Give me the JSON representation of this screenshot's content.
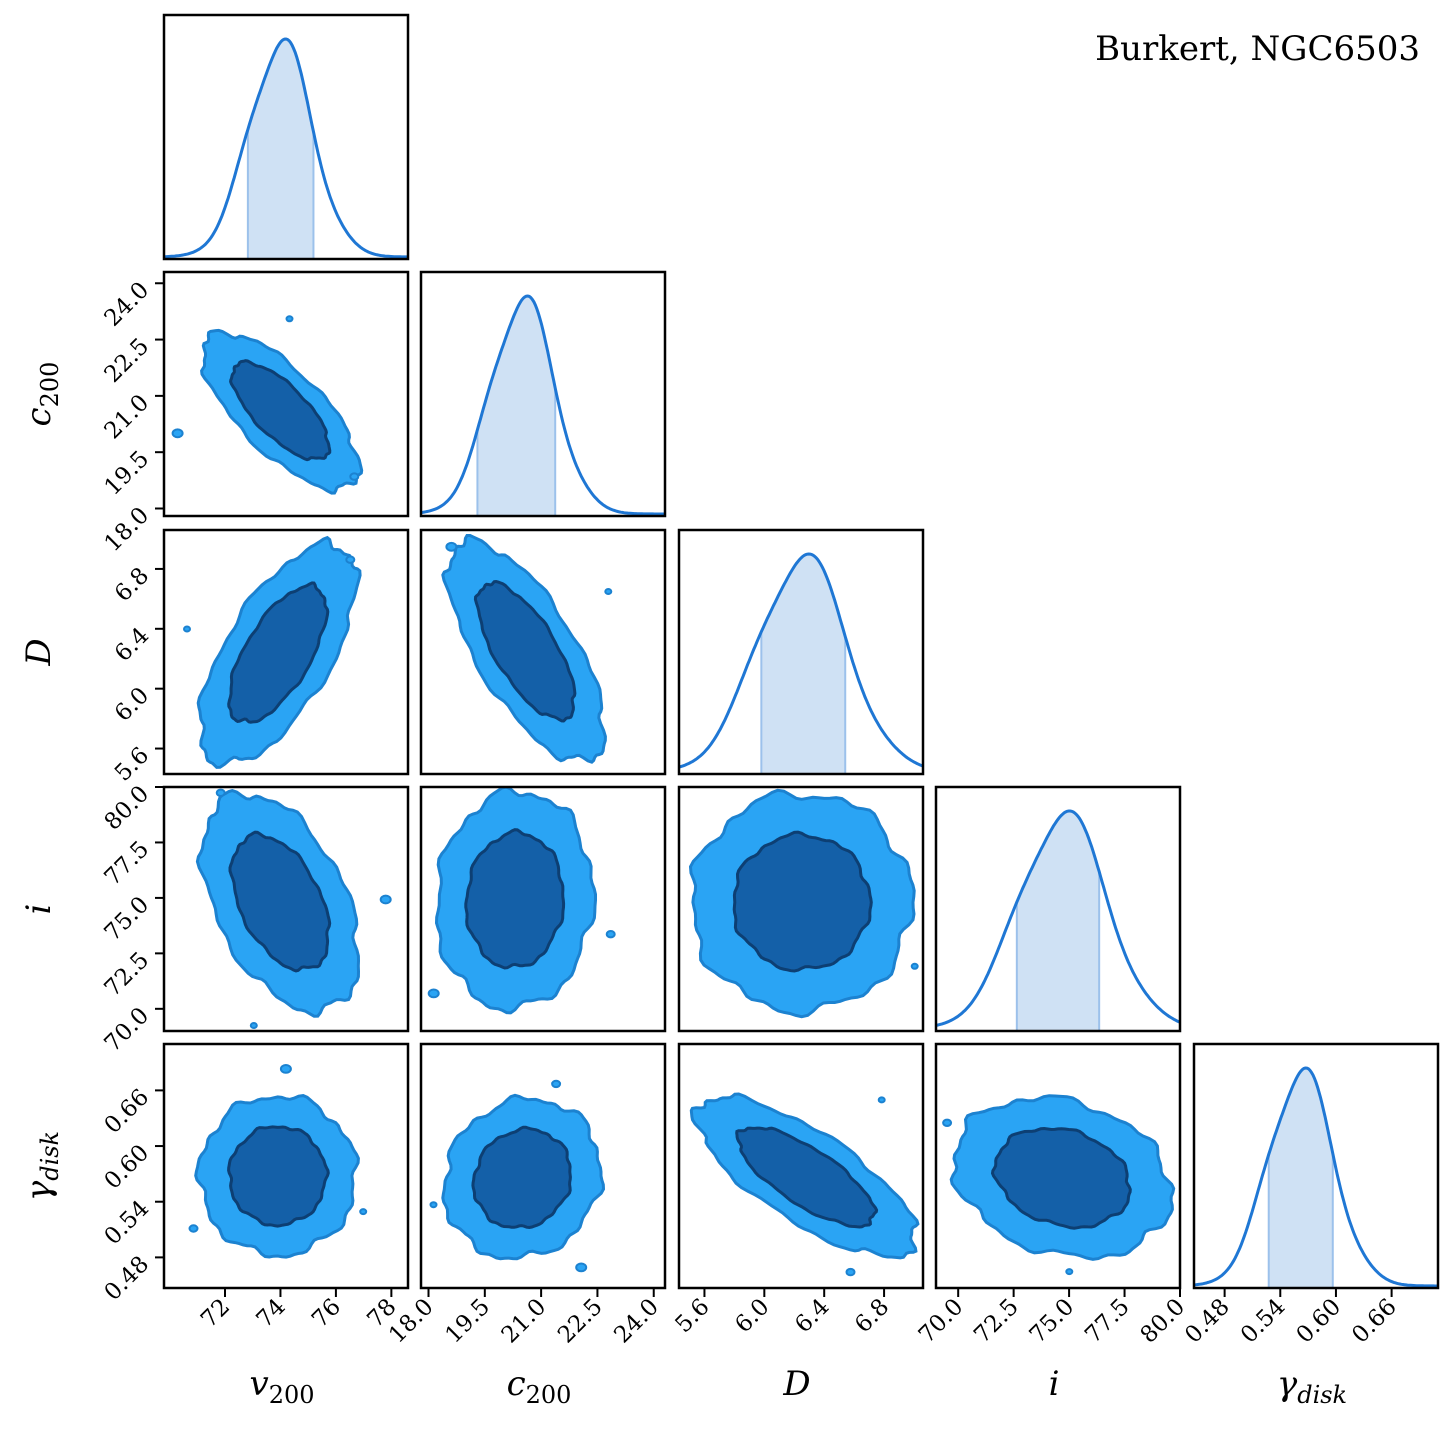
{
  "title": "Burkert, NGC6503",
  "colors": {
    "line": "#1f77d4",
    "band": "#cfe1f4",
    "band_edge": "#9cc1eb",
    "contour_outer": "#2aa4f4",
    "contour_outer_edge": "#1c82d0",
    "contour_inner": "#1460a8",
    "contour_inner_edge": "#0d3f73",
    "frame": "#000000"
  },
  "chart_data": {
    "type": "corner",
    "parameters": [
      {
        "id": "v200",
        "label": "v200",
        "label_base": "v",
        "label_sub": "200",
        "range": [
          69.8,
          78.6
        ],
        "ticks": [
          72,
          74,
          76,
          78
        ],
        "tick_labels": [
          "72",
          "74",
          "76",
          "78"
        ]
      },
      {
        "id": "c200",
        "label": "c200",
        "label_base": "c",
        "label_sub": "200",
        "range": [
          17.8,
          24.3
        ],
        "ticks": [
          18.0,
          19.5,
          21.0,
          22.5,
          24.0
        ],
        "tick_labels": [
          "18.0",
          "19.5",
          "21.0",
          "22.5",
          "24.0"
        ]
      },
      {
        "id": "D",
        "label": "D",
        "label_base": "D",
        "label_sub": "",
        "range": [
          5.43,
          7.06
        ],
        "ticks": [
          5.6,
          6.0,
          6.4,
          6.8
        ],
        "tick_labels": [
          "5.6",
          "6.0",
          "6.4",
          "6.8"
        ]
      },
      {
        "id": "i",
        "label": "i",
        "label_base": "i",
        "label_sub": "",
        "range": [
          69.0,
          80.0
        ],
        "ticks": [
          70.0,
          72.5,
          75.0,
          77.5,
          80.0
        ],
        "tick_labels": [
          "70.0",
          "72.5",
          "75.0",
          "77.5",
          "80.0"
        ]
      },
      {
        "id": "gamma_disk",
        "label": "γdisk",
        "label_base": "γ",
        "label_sub": "disk",
        "range": [
          0.447,
          0.71
        ],
        "ticks": [
          0.48,
          0.54,
          0.6,
          0.66
        ],
        "tick_labels": [
          "0.48",
          "0.54",
          "0.60",
          "0.66"
        ]
      }
    ],
    "marginals": [
      {
        "param": "v200",
        "mean": 74.0,
        "std": 1.15,
        "interval_68": [
          72.8,
          75.2
        ]
      },
      {
        "param": "c200",
        "mean": 20.5,
        "std": 0.85,
        "interval_68": [
          19.3,
          21.4
        ]
      },
      {
        "param": "D",
        "mean": 6.25,
        "std": 0.3,
        "interval_68": [
          5.97,
          6.55
        ]
      },
      {
        "param": "i",
        "mean": 74.7,
        "std": 2.0,
        "interval_68": [
          72.6,
          76.4
        ]
      },
      {
        "param": "gamma_disk",
        "mean": 0.562,
        "std": 0.035,
        "interval_68": [
          0.526,
          0.597
        ]
      }
    ],
    "pairs": [
      {
        "x": "v200",
        "y": "c200",
        "center": [
          74.0,
          20.6
        ],
        "std": [
          1.15,
          0.85
        ],
        "corr": -0.72
      },
      {
        "x": "v200",
        "y": "D",
        "center": [
          73.9,
          6.23
        ],
        "std": [
          1.15,
          0.3
        ],
        "corr": 0.65
      },
      {
        "x": "c200",
        "y": "D",
        "center": [
          20.6,
          6.25
        ],
        "std": [
          0.85,
          0.3
        ],
        "corr": -0.7
      },
      {
        "x": "v200",
        "y": "i",
        "center": [
          74.0,
          74.8
        ],
        "std": [
          1.15,
          2.0
        ],
        "corr": -0.45
      },
      {
        "x": "c200",
        "y": "i",
        "center": [
          20.3,
          74.9
        ],
        "std": [
          0.85,
          2.0
        ],
        "corr": 0.05
      },
      {
        "x": "D",
        "y": "i",
        "center": [
          6.25,
          74.8
        ],
        "std": [
          0.3,
          2.0
        ],
        "corr": 0.0
      },
      {
        "x": "v200",
        "y": "gamma_disk",
        "center": [
          73.9,
          0.568
        ],
        "std": [
          1.15,
          0.035
        ],
        "corr": 0.0
      },
      {
        "x": "c200",
        "y": "gamma_disk",
        "center": [
          20.5,
          0.565
        ],
        "std": [
          0.85,
          0.035
        ],
        "corr": 0.1
      },
      {
        "x": "D",
        "y": "gamma_disk",
        "center": [
          6.28,
          0.567
        ],
        "std": [
          0.3,
          0.035
        ],
        "corr": -0.75
      },
      {
        "x": "i",
        "y": "gamma_disk",
        "center": [
          74.7,
          0.566
        ],
        "std": [
          2.0,
          0.035
        ],
        "corr": -0.2
      }
    ],
    "contour_levels": [
      "68%",
      "95%"
    ],
    "grid": false,
    "legend": "none"
  }
}
